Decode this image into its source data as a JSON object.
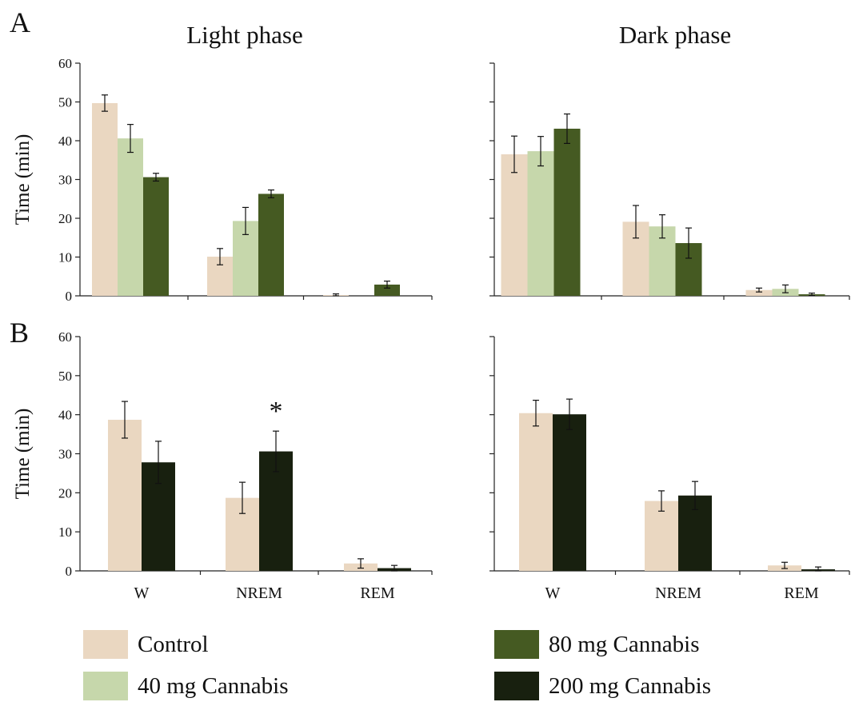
{
  "panel_labels": {
    "a": "A",
    "b": "B"
  },
  "column_titles": {
    "left": "Light phase",
    "right": "Dark phase"
  },
  "colors": {
    "Control": "#ead7c1",
    "40 mg Cannabis": "#c6d7ab",
    "80 mg Cannabis": "#455a22",
    "200 mg Cannabis": "#18200f"
  },
  "legend": [
    {
      "label": "Control",
      "color": "#ead7c1"
    },
    {
      "label": "40 mg Cannabis",
      "color": "#c6d7ab"
    },
    {
      "label": "80 mg Cannabis",
      "color": "#455a22"
    },
    {
      "label": "200 mg Cannabis",
      "color": "#18200f"
    }
  ],
  "chart_data": [
    {
      "id": "A-light",
      "type": "bar",
      "panel": "A",
      "title": "Light phase",
      "ylabel": "Time (min)",
      "ylim": [
        0,
        60
      ],
      "yticks": [
        0,
        10,
        20,
        30,
        40,
        50,
        60
      ],
      "categories": [
        "W",
        "NREM",
        "REM"
      ],
      "show_category_labels": false,
      "series": [
        {
          "name": "Control",
          "values": [
            49.7,
            10.1,
            0.2
          ],
          "errors": [
            2.1,
            2.1,
            0.3
          ]
        },
        {
          "name": "40 mg Cannabis",
          "values": [
            40.6,
            19.3,
            0.0
          ],
          "errors": [
            3.6,
            3.5,
            0.0
          ]
        },
        {
          "name": "80 mg Cannabis",
          "values": [
            30.6,
            26.3,
            2.9
          ],
          "errors": [
            1.0,
            1.0,
            0.9
          ]
        }
      ],
      "annotations": []
    },
    {
      "id": "A-dark",
      "type": "bar",
      "panel": "A",
      "title": "Dark phase",
      "ylabel": "",
      "ylim": [
        0,
        60
      ],
      "yticks": [
        0,
        10,
        20,
        30,
        40,
        50,
        60
      ],
      "categories": [
        "W",
        "NREM",
        "REM"
      ],
      "show_category_labels": false,
      "series": [
        {
          "name": "Control",
          "values": [
            36.5,
            19.1,
            1.5
          ],
          "errors": [
            4.7,
            4.2,
            0.5
          ]
        },
        {
          "name": "40 mg Cannabis",
          "values": [
            37.3,
            17.9,
            1.8
          ],
          "errors": [
            3.8,
            3.0,
            1.0
          ]
        },
        {
          "name": "80 mg Cannabis",
          "values": [
            43.1,
            13.6,
            0.4
          ],
          "errors": [
            3.8,
            3.9,
            0.3
          ]
        }
      ],
      "annotations": []
    },
    {
      "id": "B-light",
      "type": "bar",
      "panel": "B",
      "title": "",
      "ylabel": "Time (min)",
      "ylim": [
        0,
        60
      ],
      "yticks": [
        0,
        10,
        20,
        30,
        40,
        50,
        60
      ],
      "categories": [
        "W",
        "NREM",
        "REM"
      ],
      "show_category_labels": true,
      "series": [
        {
          "name": "Control",
          "values": [
            38.7,
            18.7,
            1.9
          ],
          "errors": [
            4.7,
            4.0,
            1.2
          ]
        },
        {
          "name": "200 mg Cannabis",
          "values": [
            27.8,
            30.6,
            0.7
          ],
          "errors": [
            5.4,
            5.2,
            0.7
          ]
        }
      ],
      "annotations": [
        {
          "text": "*",
          "category": "NREM",
          "series": "200 mg Cannabis"
        }
      ]
    },
    {
      "id": "B-dark",
      "type": "bar",
      "panel": "B",
      "title": "",
      "ylabel": "",
      "ylim": [
        0,
        60
      ],
      "yticks": [
        0,
        10,
        20,
        30,
        40,
        50,
        60
      ],
      "categories": [
        "W",
        "NREM",
        "REM"
      ],
      "show_category_labels": true,
      "series": [
        {
          "name": "Control",
          "values": [
            40.4,
            17.9,
            1.4
          ],
          "errors": [
            3.3,
            2.6,
            0.8
          ]
        },
        {
          "name": "200 mg Cannabis",
          "values": [
            40.1,
            19.3,
            0.4
          ],
          "errors": [
            3.9,
            3.6,
            0.6
          ]
        }
      ],
      "annotations": []
    }
  ]
}
